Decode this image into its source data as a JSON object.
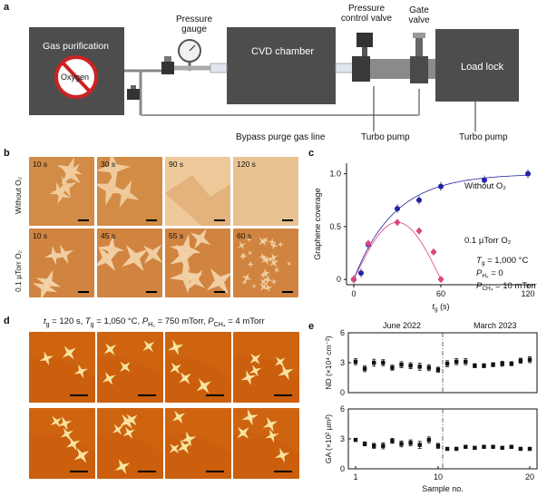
{
  "panels": {
    "a": "a",
    "b": "b",
    "c": "c",
    "d": "d",
    "e": "e"
  },
  "schematic": {
    "gas_purification": "Gas purification",
    "oxygen": "Oxygen",
    "pressure_gauge": [
      "Pressure",
      "gauge"
    ],
    "cvd_chamber": "CVD chamber",
    "pressure_control_valve": [
      "Pressure",
      "control valve"
    ],
    "gate_valve": [
      "Gate",
      "valve"
    ],
    "load_lock": "Load lock",
    "bypass": "Bypass purge gas line",
    "turbo1": "Turbo pump",
    "turbo2": "Turbo pump"
  },
  "panel_b": {
    "row_labels": [
      "Without O₂",
      "0.1 µTorr O₂"
    ],
    "row1_times": [
      "10 s",
      "30 s",
      "90 s",
      "120 s"
    ],
    "row2_times": [
      "10 s",
      "45 s",
      "55 s",
      "60 s"
    ]
  },
  "panel_d": {
    "caption_parts": [
      "t",
      "g",
      " = 120 s, ",
      "T",
      "g",
      " = 1,050 °C, ",
      "P",
      "H₂",
      " = 750 mTorr, ",
      "P",
      "CH₄",
      " = 4 mTorr"
    ]
  },
  "colors": {
    "box": "#4d4d4d",
    "blue": "#2222aa",
    "pink": "#d9457f",
    "copper": "#d98a3c",
    "orange": "#cf6410"
  },
  "chart_data": [
    {
      "type": "scatter",
      "id": "c",
      "xlabel": "t_g (s)",
      "ylabel": "Graphene coverage",
      "xlim": [
        -5,
        125
      ],
      "ylim": [
        -0.05,
        1.1
      ],
      "xticks": [
        "0",
        "60",
        "120"
      ],
      "yticks": [
        "0",
        "0.5",
        "1.0"
      ],
      "series": [
        {
          "name": "Without O₂",
          "color": "#2222aa",
          "x": [
            0,
            5,
            10,
            30,
            45,
            60,
            90,
            120
          ],
          "y": [
            0.0,
            0.06,
            0.33,
            0.67,
            0.75,
            0.88,
            0.94,
            1.0
          ]
        },
        {
          "name": "0.1 µTorr O₂",
          "color": "#d9457f",
          "x": [
            0,
            10,
            30,
            45,
            55,
            60
          ],
          "y": [
            0.0,
            0.34,
            0.54,
            0.46,
            0.26,
            0.0
          ]
        }
      ],
      "annotations": {
        "without": "Without O₂",
        "with": "0.1 µTorr O₂",
        "tg": [
          "T",
          "g",
          " = 1,000 °C"
        ],
        "ph2": [
          "P",
          "H₂",
          " = 0"
        ],
        "pch4": [
          "P",
          "CH₄",
          " = 10 mTorr"
        ]
      }
    },
    {
      "type": "scatter",
      "id": "e-top",
      "ylabel": "ND (×10⁴ cm⁻²)",
      "ylim": [
        0,
        6
      ],
      "yticks": [
        "0",
        "3",
        "6"
      ],
      "x": [
        1,
        2,
        3,
        4,
        5,
        6,
        7,
        8,
        9,
        10,
        11,
        12,
        13,
        14,
        15,
        16,
        17,
        18,
        19,
        20
      ],
      "values": [
        3.1,
        2.4,
        3.0,
        3.0,
        2.5,
        2.8,
        2.7,
        2.6,
        2.5,
        2.3,
        2.9,
        3.1,
        3.1,
        2.7,
        2.7,
        2.8,
        2.9,
        2.9,
        3.2,
        3.3
      ],
      "errors": [
        0.3,
        0.3,
        0.35,
        0.3,
        0.25,
        0.3,
        0.3,
        0.35,
        0.3,
        0.25,
        0.3,
        0.3,
        0.3,
        0.2,
        0.2,
        0.2,
        0.25,
        0.2,
        0.25,
        0.3
      ],
      "top_labels": [
        "June 2022",
        "March 2023"
      ],
      "divider_x": 10.5
    },
    {
      "type": "scatter",
      "id": "e-bottom",
      "ylabel": "GA (×10² µm²)",
      "xlabel": "Sample no.",
      "ylim": [
        0,
        6
      ],
      "yticks": [
        "0",
        "3",
        "6"
      ],
      "xticks": [
        "1",
        "10",
        "20"
      ],
      "x": [
        1,
        2,
        3,
        4,
        5,
        6,
        7,
        8,
        9,
        10,
        11,
        12,
        13,
        14,
        15,
        16,
        17,
        18,
        19,
        20
      ],
      "values": [
        2.9,
        2.5,
        2.3,
        2.3,
        2.8,
        2.5,
        2.6,
        2.4,
        2.9,
        2.3,
        2.0,
        2.0,
        2.2,
        2.1,
        2.2,
        2.2,
        2.1,
        2.2,
        2.0,
        2.0
      ],
      "errors": [
        0.15,
        0.2,
        0.25,
        0.3,
        0.25,
        0.3,
        0.3,
        0.35,
        0.3,
        0.25,
        0.15,
        0.15,
        0.15,
        0.15,
        0.15,
        0.15,
        0.15,
        0.15,
        0.15,
        0.15
      ],
      "divider_x": 10.5
    }
  ]
}
